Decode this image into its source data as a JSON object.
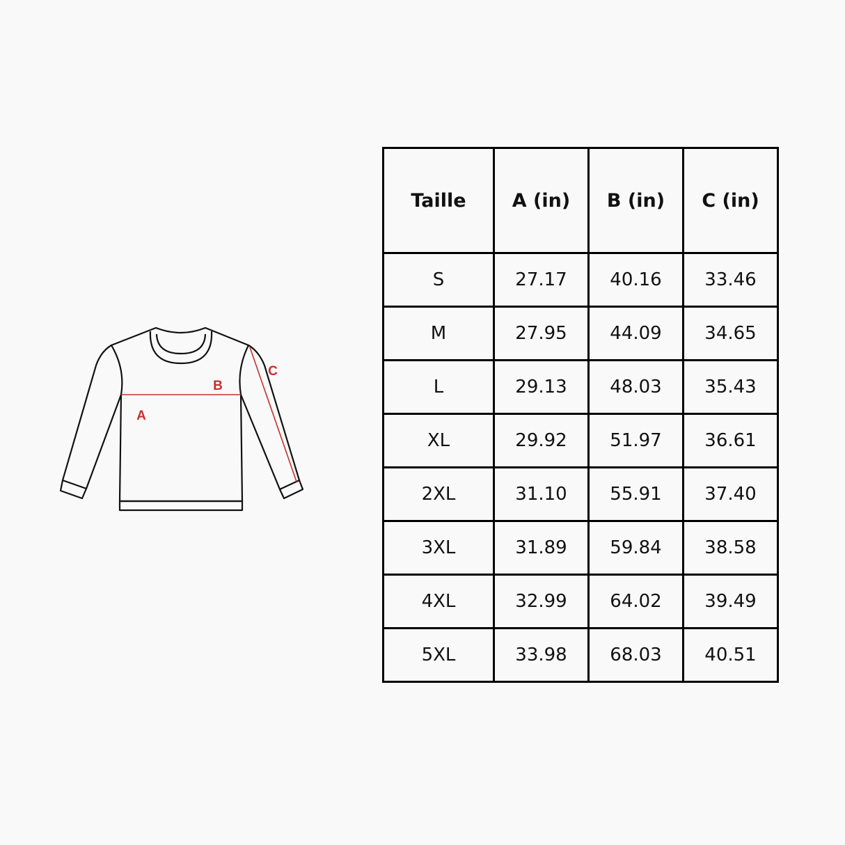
{
  "diagram": {
    "labels": {
      "a": "A",
      "b": "B",
      "c": "C"
    },
    "accent_color": "#c9302c"
  },
  "table": {
    "headers": [
      "Taille",
      "A (in)",
      "B (in)",
      "C (in)"
    ],
    "rows": [
      [
        "S",
        "27.17",
        "40.16",
        "33.46"
      ],
      [
        "M",
        "27.95",
        "44.09",
        "34.65"
      ],
      [
        "L",
        "29.13",
        "48.03",
        "35.43"
      ],
      [
        "XL",
        "29.92",
        "51.97",
        "36.61"
      ],
      [
        "2XL",
        "31.10",
        "55.91",
        "37.40"
      ],
      [
        "3XL",
        "31.89",
        "59.84",
        "38.58"
      ],
      [
        "4XL",
        "32.99",
        "64.02",
        "39.49"
      ],
      [
        "5XL",
        "33.98",
        "68.03",
        "40.51"
      ]
    ]
  }
}
